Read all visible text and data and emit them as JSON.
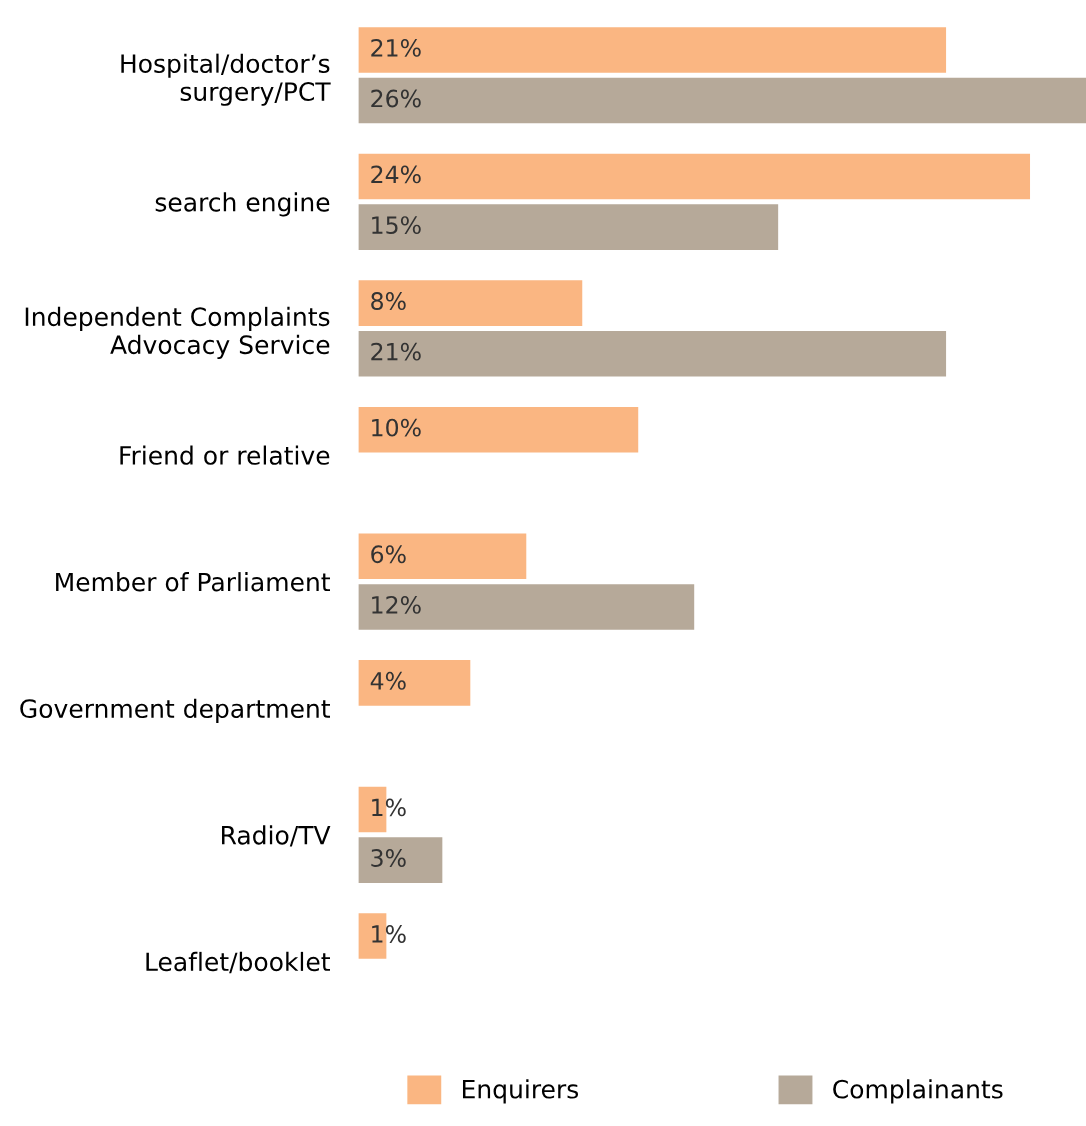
{
  "chart_data": {
    "type": "bar",
    "orientation": "horizontal",
    "categories": [
      "Hospital/doctor’s\nsurgery/PCT",
      "search engine",
      "Independent Complaints\nAdvocacy Service",
      "Friend or relative",
      "Member of Parliament",
      "Government department",
      "Radio/TV",
      "Leaflet/booklet"
    ],
    "series": [
      {
        "name": "Enquirers",
        "color": "#fab682",
        "values": [
          21,
          24,
          8,
          10,
          6,
          4,
          1,
          1
        ],
        "value_labels": [
          "21%",
          "24%",
          "8%",
          "10%",
          "6%",
          "4%",
          "1%",
          "1%"
        ]
      },
      {
        "name": "Complainants",
        "color": "#b6a999",
        "values": [
          26,
          15,
          21,
          null,
          12,
          null,
          3,
          null
        ],
        "value_labels": [
          "26%",
          "15%",
          "21%",
          null,
          "12%",
          null,
          "3%",
          null
        ]
      }
    ],
    "legend": "bottom",
    "grid": false
  }
}
